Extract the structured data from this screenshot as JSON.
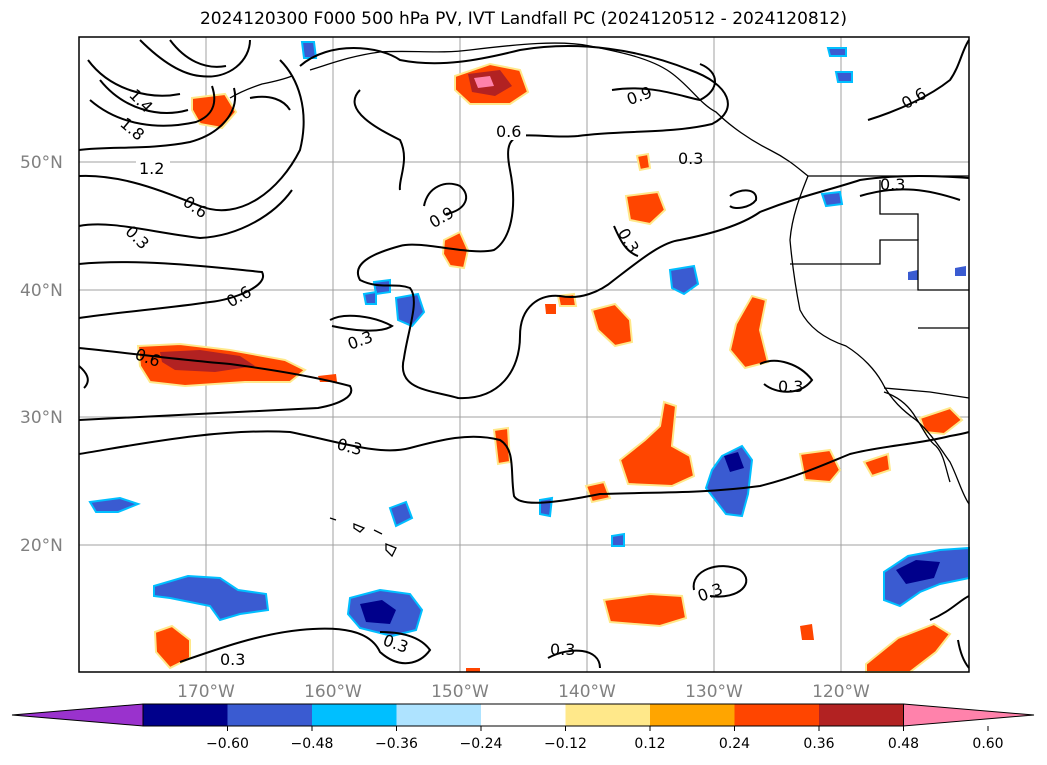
{
  "title": "2024120300 F000 500 hPa PV, IVT Landfall PC (2024120512 - 2024120812)",
  "map": {
    "lat_labels": [
      "50°N",
      "40°N",
      "30°N",
      "20°N"
    ],
    "lon_labels": [
      "170°W",
      "160°W",
      "150°W",
      "140°W",
      "130°W",
      "120°W"
    ],
    "contour_labels": [
      "1.2",
      "0.6",
      "0.3",
      "0.6",
      "0.9",
      "0.6",
      "0.3",
      "0.9",
      "0.3",
      "0.6",
      "0.3",
      "0.3",
      "0.3",
      "0.6",
      "0.3",
      "0.3",
      "0.3",
      "0.3",
      "0.3",
      "1.8",
      "1.4"
    ]
  },
  "colorbar": {
    "ticks": [
      "−0.60",
      "−0.48",
      "−0.36",
      "−0.24",
      "−0.12",
      "0.12",
      "0.24",
      "0.36",
      "0.48",
      "0.60"
    ],
    "colors": [
      "#9a32cd",
      "#00008b",
      "#3a5bd1",
      "#00bfff",
      "#aee3ff",
      "#ffffff",
      "#ffe88a",
      "#ffa500",
      "#ff4500",
      "#b22222",
      "#ff82ab"
    ]
  }
}
